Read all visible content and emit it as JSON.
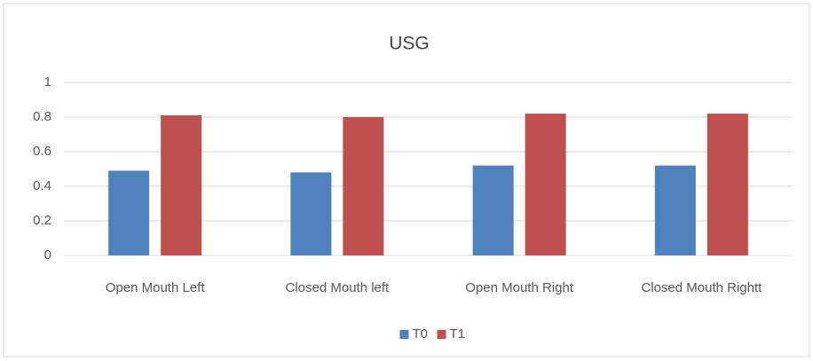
{
  "chart_data": {
    "type": "bar",
    "title": "USG",
    "categories": [
      "Open Mouth Left",
      "Closed Mouth left",
      "Open Mouth Right",
      "Closed Mouth Rightt"
    ],
    "series": [
      {
        "name": "T0",
        "color": "#4f81bd",
        "values": [
          0.49,
          0.48,
          0.52,
          0.52
        ]
      },
      {
        "name": "T1",
        "color": "#c0504d",
        "values": [
          0.81,
          0.8,
          0.82,
          0.82
        ]
      }
    ],
    "ylim": [
      0,
      1
    ],
    "yticks": [
      0,
      0.2,
      0.4,
      0.6,
      0.8,
      1
    ],
    "grid": true,
    "legend": "bottom"
  }
}
